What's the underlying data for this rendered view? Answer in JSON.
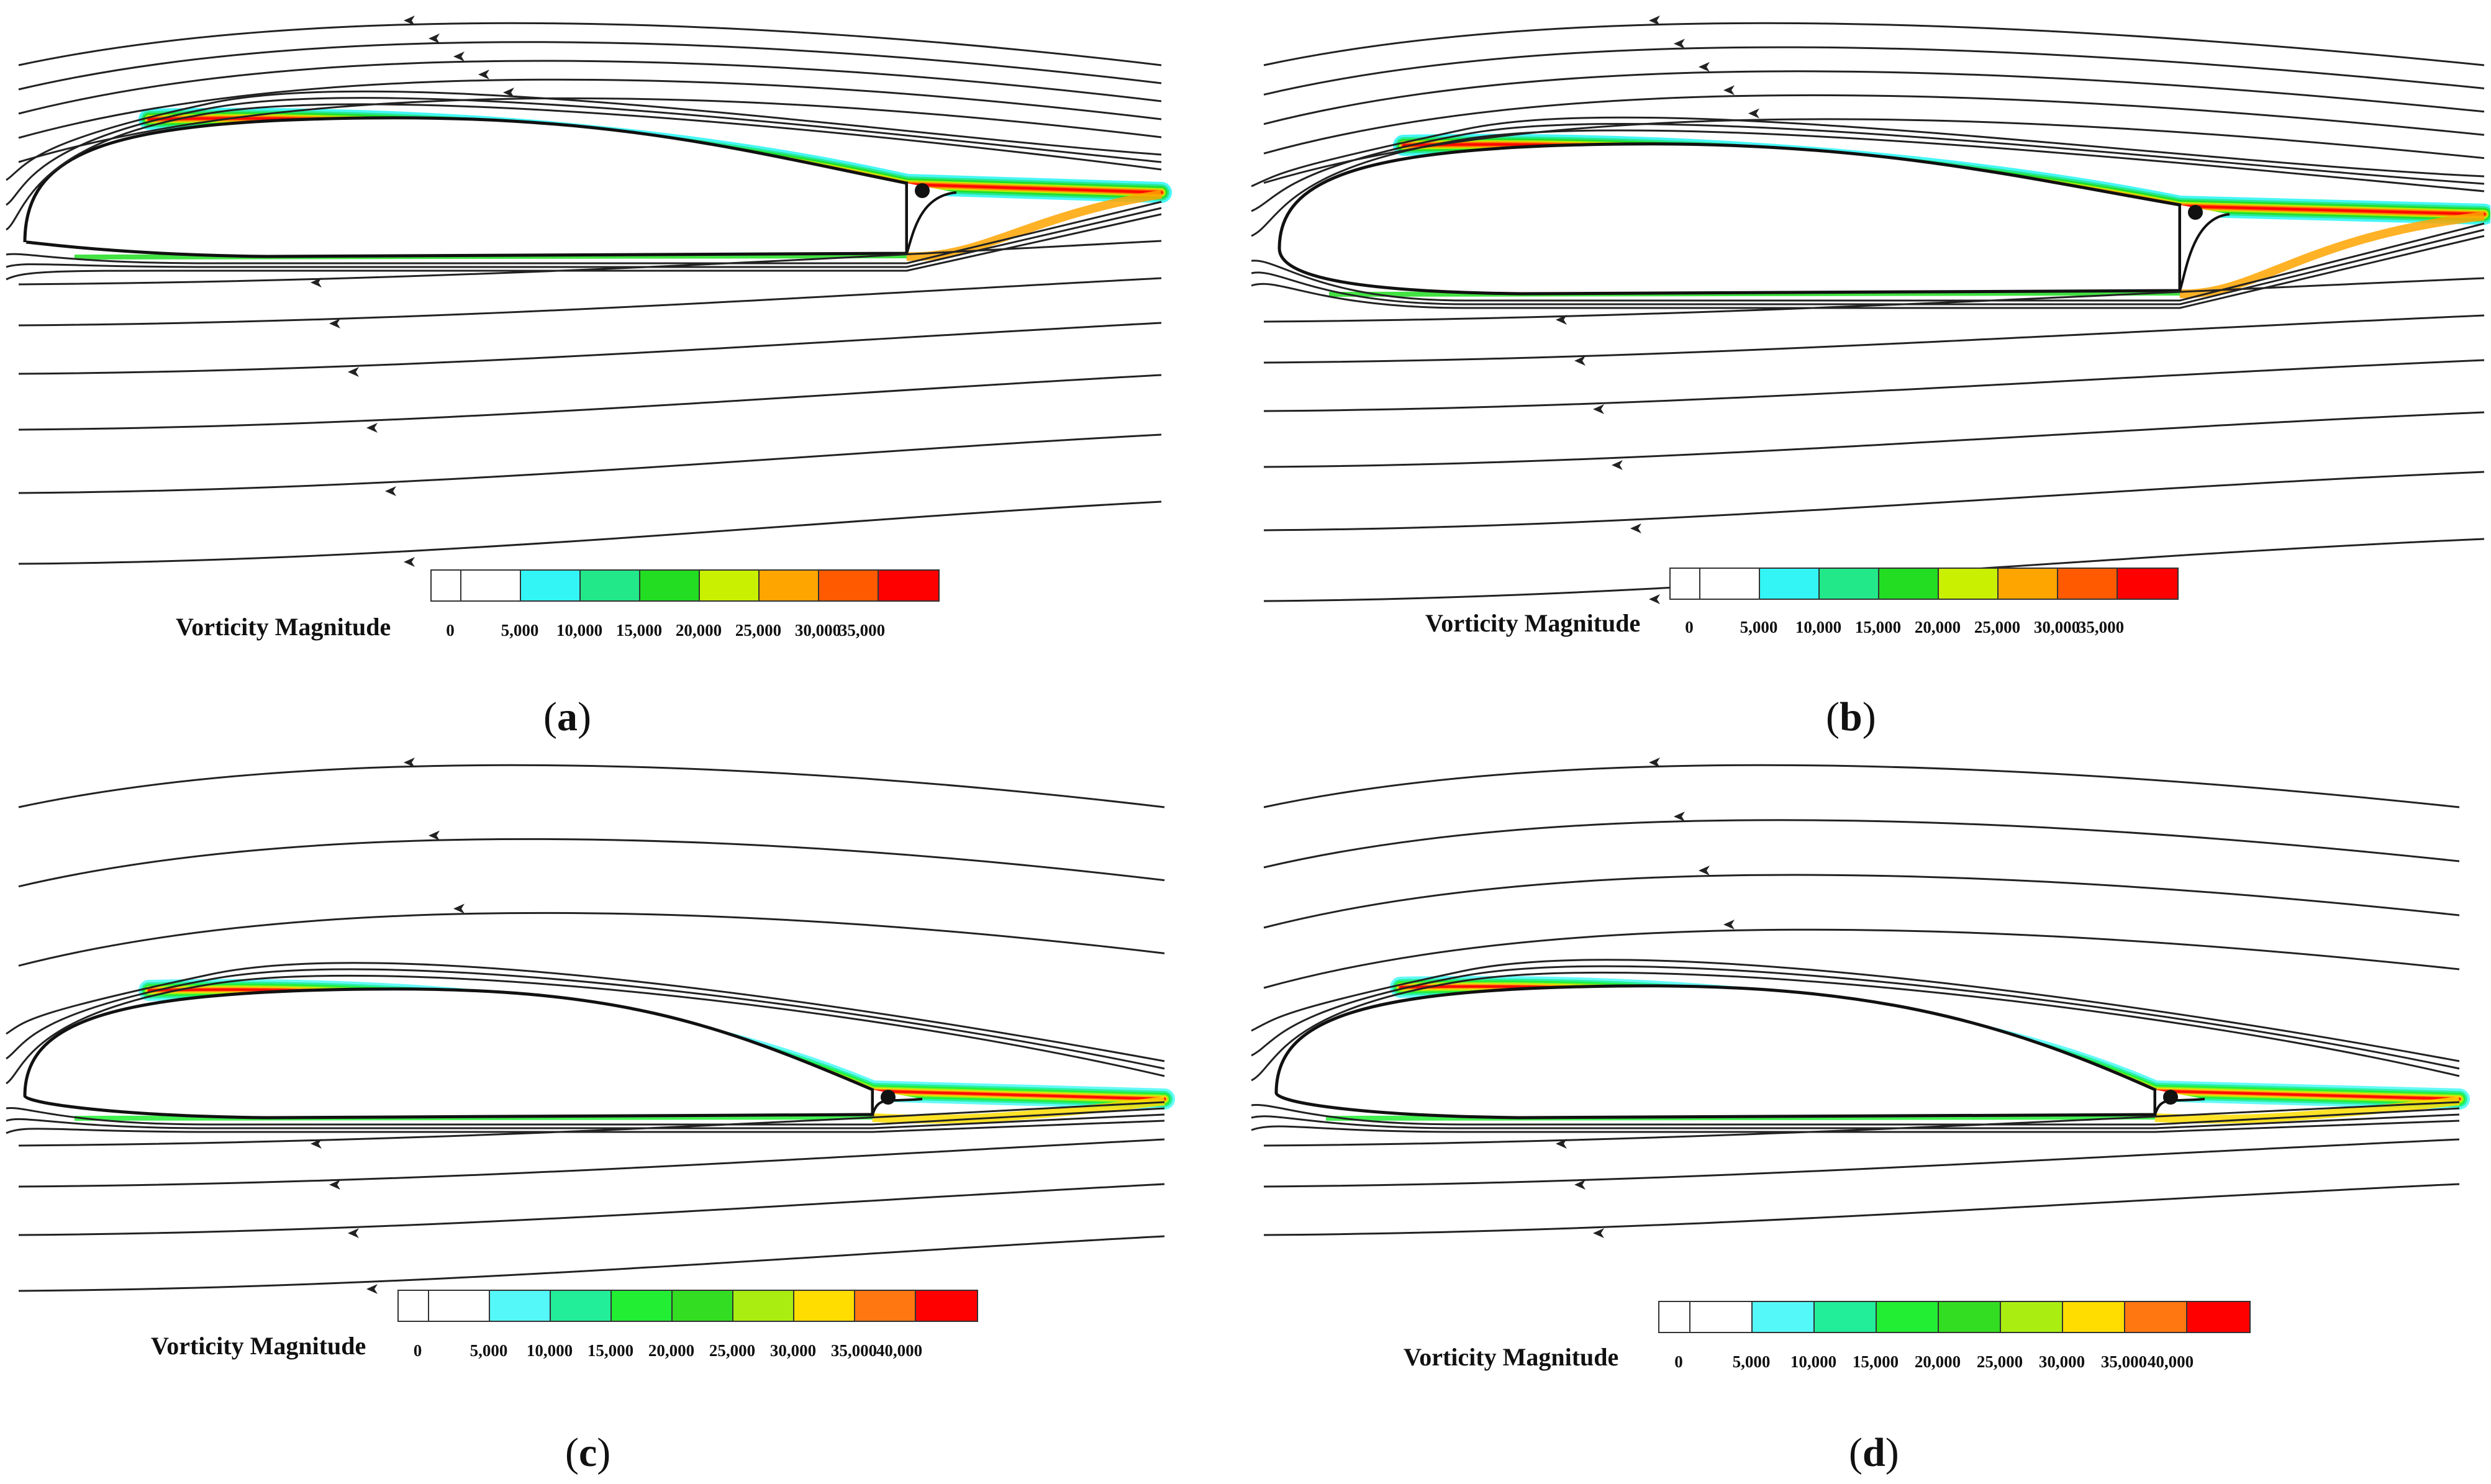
{
  "panels": [
    {
      "id": "a",
      "label": "a",
      "legend_title": "Vorticity Magnitude",
      "ticks": [
        "0",
        "5,000",
        "10,000",
        "15,000",
        "20,000",
        "25,000",
        "30,000",
        "35,000"
      ]
    },
    {
      "id": "b",
      "label": "b",
      "legend_title": "Vorticity Magnitude",
      "ticks": [
        "0",
        "5,000",
        "10,000",
        "15,000",
        "20,000",
        "25,000",
        "30,000",
        "35,000"
      ]
    },
    {
      "id": "c",
      "label": "c",
      "legend_title": "Vorticity Magnitude",
      "ticks": [
        "0",
        "5,000",
        "10,000",
        "15,000",
        "20,000",
        "25,000",
        "30,000",
        "35,000",
        "40,000"
      ]
    },
    {
      "id": "d",
      "label": "d",
      "legend_title": "Vorticity Magnitude",
      "ticks": [
        "0",
        "5,000",
        "10,000",
        "15,000",
        "20,000",
        "25,000",
        "30,000",
        "35,000",
        "40,000"
      ]
    }
  ],
  "colors": {
    "scale8": [
      "#ffffff",
      "#ffffff",
      "#33f5f5",
      "#22e889",
      "#22dd22",
      "#c8f000",
      "#ffa500",
      "#ff5a00",
      "#ff0000"
    ],
    "scale9": [
      "#ffffff",
      "#ffffff",
      "#55f8f8",
      "#22ee99",
      "#22ee33",
      "#33dd22",
      "#aaee11",
      "#ffdd00",
      "#ff7711",
      "#ff0000"
    ],
    "streamline": "#222222",
    "airfoil": "#111111"
  }
}
